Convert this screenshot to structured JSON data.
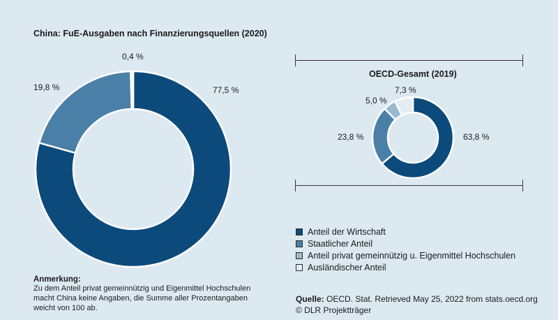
{
  "chart_data": [
    {
      "type": "pie",
      "title": "China: FuE-Ausgaben nach Finanzierungsquellen (2020)",
      "categories": [
        "Anteil der Wirtschaft",
        "Staatlicher Anteil",
        "Anteil privat gemeinnützig u. Eigenmittel Hochschulen",
        "Ausländischer Anteil"
      ],
      "values": [
        77.5,
        19.8,
        0.0,
        0.4
      ],
      "labels": [
        "77,5 %",
        "19,8 %",
        "",
        "0,4 %"
      ]
    },
    {
      "type": "pie",
      "title": "OECD-Gesamt (2019)",
      "categories": [
        "Anteil der Wirtschaft",
        "Staatlicher Anteil",
        "Anteil privat gemeinnützig u. Eigenmittel Hochschulen",
        "Ausländischer Anteil"
      ],
      "values": [
        63.8,
        23.8,
        5.0,
        7.3
      ],
      "labels": [
        "63,8 %",
        "23,8 %",
        "5,0 %",
        "7,3 %"
      ]
    }
  ],
  "colors": [
    "#0c4a7c",
    "#4a80a8",
    "#9ab9d0",
    "#e4edf4"
  ],
  "legend": [
    "Anteil der Wirtschaft",
    "Staatlicher Anteil",
    "Anteil privat gemeinnützig u. Eigenmittel Hochschulen",
    "Ausländischer Anteil"
  ],
  "note": {
    "title": "Anmerkung:",
    "lines": [
      "Zu dem Anteil privat gemeinnützig und Eigenmittel Hochschulen",
      "macht China keine Angaben, die Summe aller Prozentangaben",
      "weicht von 100 ab."
    ]
  },
  "source": {
    "label": "Quelle:",
    "text": " OECD. Stat. Retrieved May 25, 2022 from stats.oecd.org",
    "copyright": "© DLR Projektträger"
  }
}
